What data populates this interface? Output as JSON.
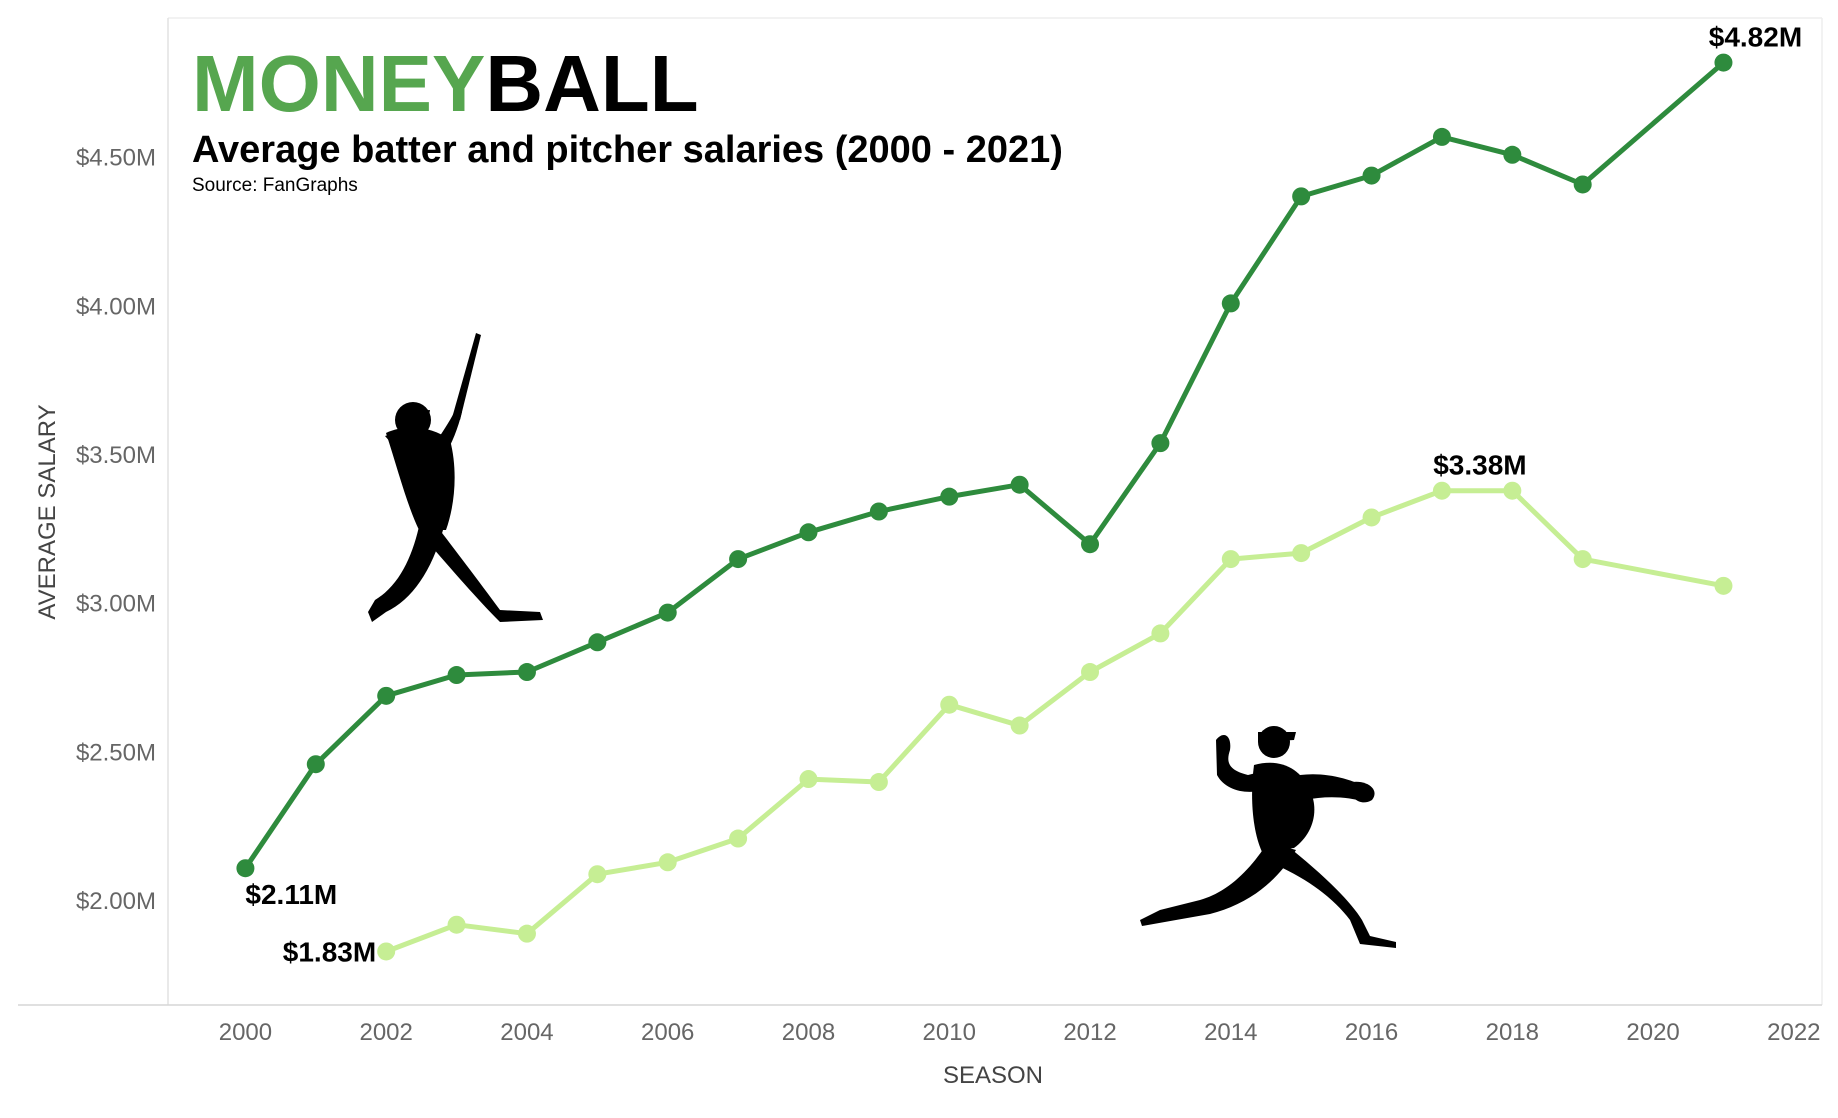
{
  "chart_data": {
    "type": "line",
    "title_part1": "MONEY",
    "title_part2": "BALL",
    "subtitle": "Average batter and pitcher salaries (2000 - 2021)",
    "source": "Source: FanGraphs",
    "xlabel": "SEASON",
    "ylabel": "AVERAGE SALARY",
    "xlim": [
      1998.9,
      2022.4
    ],
    "ylim": [
      1.65,
      4.97
    ],
    "x_ticks": [
      2000,
      2002,
      2004,
      2006,
      2008,
      2010,
      2012,
      2014,
      2016,
      2018,
      2020,
      2022
    ],
    "y_ticks": [
      2.0,
      2.5,
      3.0,
      3.5,
      4.0,
      4.5
    ],
    "y_tick_labels": [
      "$2.00M",
      "$2.50M",
      "$3.00M",
      "$3.50M",
      "$4.00M",
      "$4.50M"
    ],
    "grid": false,
    "colors": {
      "title_accent": "#56a64f",
      "title_main": "#000000",
      "batter": "#2e8b3d",
      "pitcher": "#c6ee94"
    },
    "series": [
      {
        "key": "batter",
        "x": [
          2000,
          2001,
          2002,
          2003,
          2004,
          2005,
          2006,
          2007,
          2008,
          2009,
          2010,
          2011,
          2012,
          2013,
          2014,
          2015,
          2016,
          2017,
          2018,
          2019,
          2021
        ],
        "values": [
          2.11,
          2.46,
          2.69,
          2.76,
          2.77,
          2.87,
          2.97,
          3.15,
          3.24,
          3.31,
          3.36,
          3.4,
          3.2,
          3.54,
          4.01,
          4.37,
          4.44,
          4.57,
          4.51,
          4.41,
          4.82
        ]
      },
      {
        "key": "pitcher",
        "x": [
          2002,
          2003,
          2004,
          2005,
          2006,
          2007,
          2008,
          2009,
          2010,
          2011,
          2012,
          2013,
          2014,
          2015,
          2016,
          2017,
          2018,
          2019,
          2021
        ],
        "values": [
          1.83,
          1.92,
          1.89,
          2.09,
          2.13,
          2.21,
          2.41,
          2.4,
          2.66,
          2.59,
          2.77,
          2.9,
          3.15,
          3.17,
          3.29,
          3.38,
          3.38,
          3.15,
          3.06
        ]
      }
    ],
    "annotations": [
      {
        "text": "$4.82M",
        "x": 2021,
        "y": 4.82,
        "pos": "above"
      },
      {
        "text": "$3.38M",
        "x": 2017,
        "y": 3.38,
        "pos": "above-right"
      },
      {
        "text": "$2.11M",
        "x": 2000,
        "y": 2.11,
        "pos": "below-right"
      },
      {
        "text": "$1.83M",
        "x": 2002,
        "y": 1.83,
        "pos": "left"
      }
    ]
  }
}
